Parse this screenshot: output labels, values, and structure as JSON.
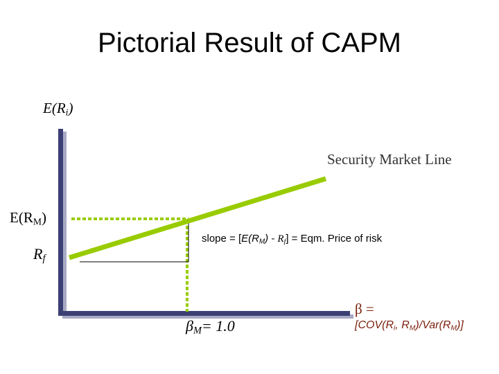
{
  "title": "Pictorial Result of CAPM",
  "y_axis_label": {
    "base": "E(R",
    "sub": "i",
    "end": ")"
  },
  "market_return_label": {
    "base": "E(R",
    "sub": "M",
    "end": ")"
  },
  "risk_free_label": {
    "base": "R",
    "sub": "f"
  },
  "sml_label": "Security Market Line",
  "slope_label": {
    "prefix": "slope = [",
    "er": "E(R",
    "er_sub": "M",
    "er_end": ") - ",
    "rf": "R",
    "rf_sub": "f",
    "suffix": "] = Eqm. Price of risk"
  },
  "beta_market_label": {
    "symbol": "β",
    "sub": "M",
    "value": "= 1.0"
  },
  "beta_definition": {
    "line1": "β =",
    "line2_a": "[COV(R",
    "line2_sub_i": "i",
    "line2_b": ", R",
    "line2_sub_m": "M",
    "line2_c": ")/Var(R",
    "line2_sub_m2": "M",
    "line2_d": ")]"
  },
  "colors": {
    "axis": "#3b3f73",
    "axis_shadow": "#a9aac4",
    "line": "#99cc00",
    "dotted": "#99cc00",
    "beta_def_text": "#7a1f0c"
  }
}
